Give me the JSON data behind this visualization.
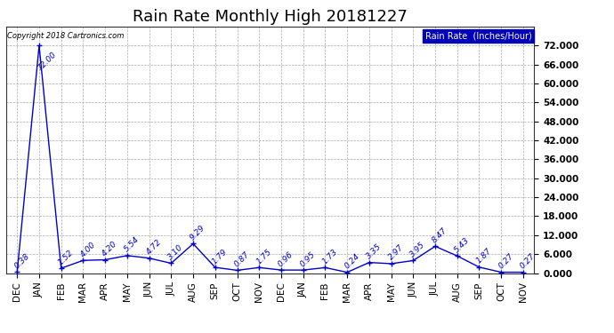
{
  "title": "Rain Rate Monthly High 20181227",
  "copyright": "Copyright 2018 Cartronics.com",
  "labels": [
    "DEC",
    "JAN",
    "FEB",
    "MAR",
    "APR",
    "MAY",
    "JUN",
    "JUL",
    "AUG",
    "SEP",
    "OCT",
    "NOV",
    "DEC",
    "JAN",
    "FEB",
    "MAR",
    "APR",
    "MAY",
    "JUN",
    "JUL",
    "AUG",
    "SEP",
    "OCT",
    "NOV"
  ],
  "values": [
    0.38,
    72.0,
    1.52,
    4.0,
    4.2,
    5.54,
    4.72,
    3.1,
    9.29,
    1.79,
    0.87,
    1.75,
    0.96,
    0.95,
    1.73,
    0.24,
    3.35,
    2.97,
    3.95,
    8.47,
    5.43,
    1.87,
    0.27,
    0.27
  ],
  "annotations": [
    "0.38",
    "72.00",
    "1.52",
    "4.00",
    "4.20",
    "5.54",
    "4.72",
    "3.10",
    "9.29",
    "1.79",
    "0.87",
    "1.75",
    "0.96",
    "0.95",
    "1.73",
    "0.24",
    "3.35",
    "2.97",
    "3.95",
    "8.47",
    "5.43",
    "1.87",
    "0.27",
    "0.27"
  ],
  "line_color": "#0000cc",
  "bg_color": "#ffffff",
  "grid_color": "#aaaaaa",
  "ylim": [
    0.0,
    78.0
  ],
  "yticks": [
    0.0,
    6.0,
    12.0,
    18.0,
    24.0,
    30.0,
    36.0,
    42.0,
    48.0,
    54.0,
    60.0,
    66.0,
    72.0
  ],
  "ytick_labels": [
    "0.000",
    "6.000",
    "12.000",
    "18.000",
    "24.000",
    "30.000",
    "36.000",
    "42.000",
    "48.000",
    "54.000",
    "60.000",
    "66.000",
    "72.000"
  ],
  "legend_text": "Rain Rate  (Inches/Hour)",
  "legend_bg": "#0000bb",
  "title_fontsize": 13,
  "tick_fontsize": 7.5,
  "annot_fontsize": 6.5,
  "annot_color": "#0000cc",
  "copyright_fontsize": 6
}
